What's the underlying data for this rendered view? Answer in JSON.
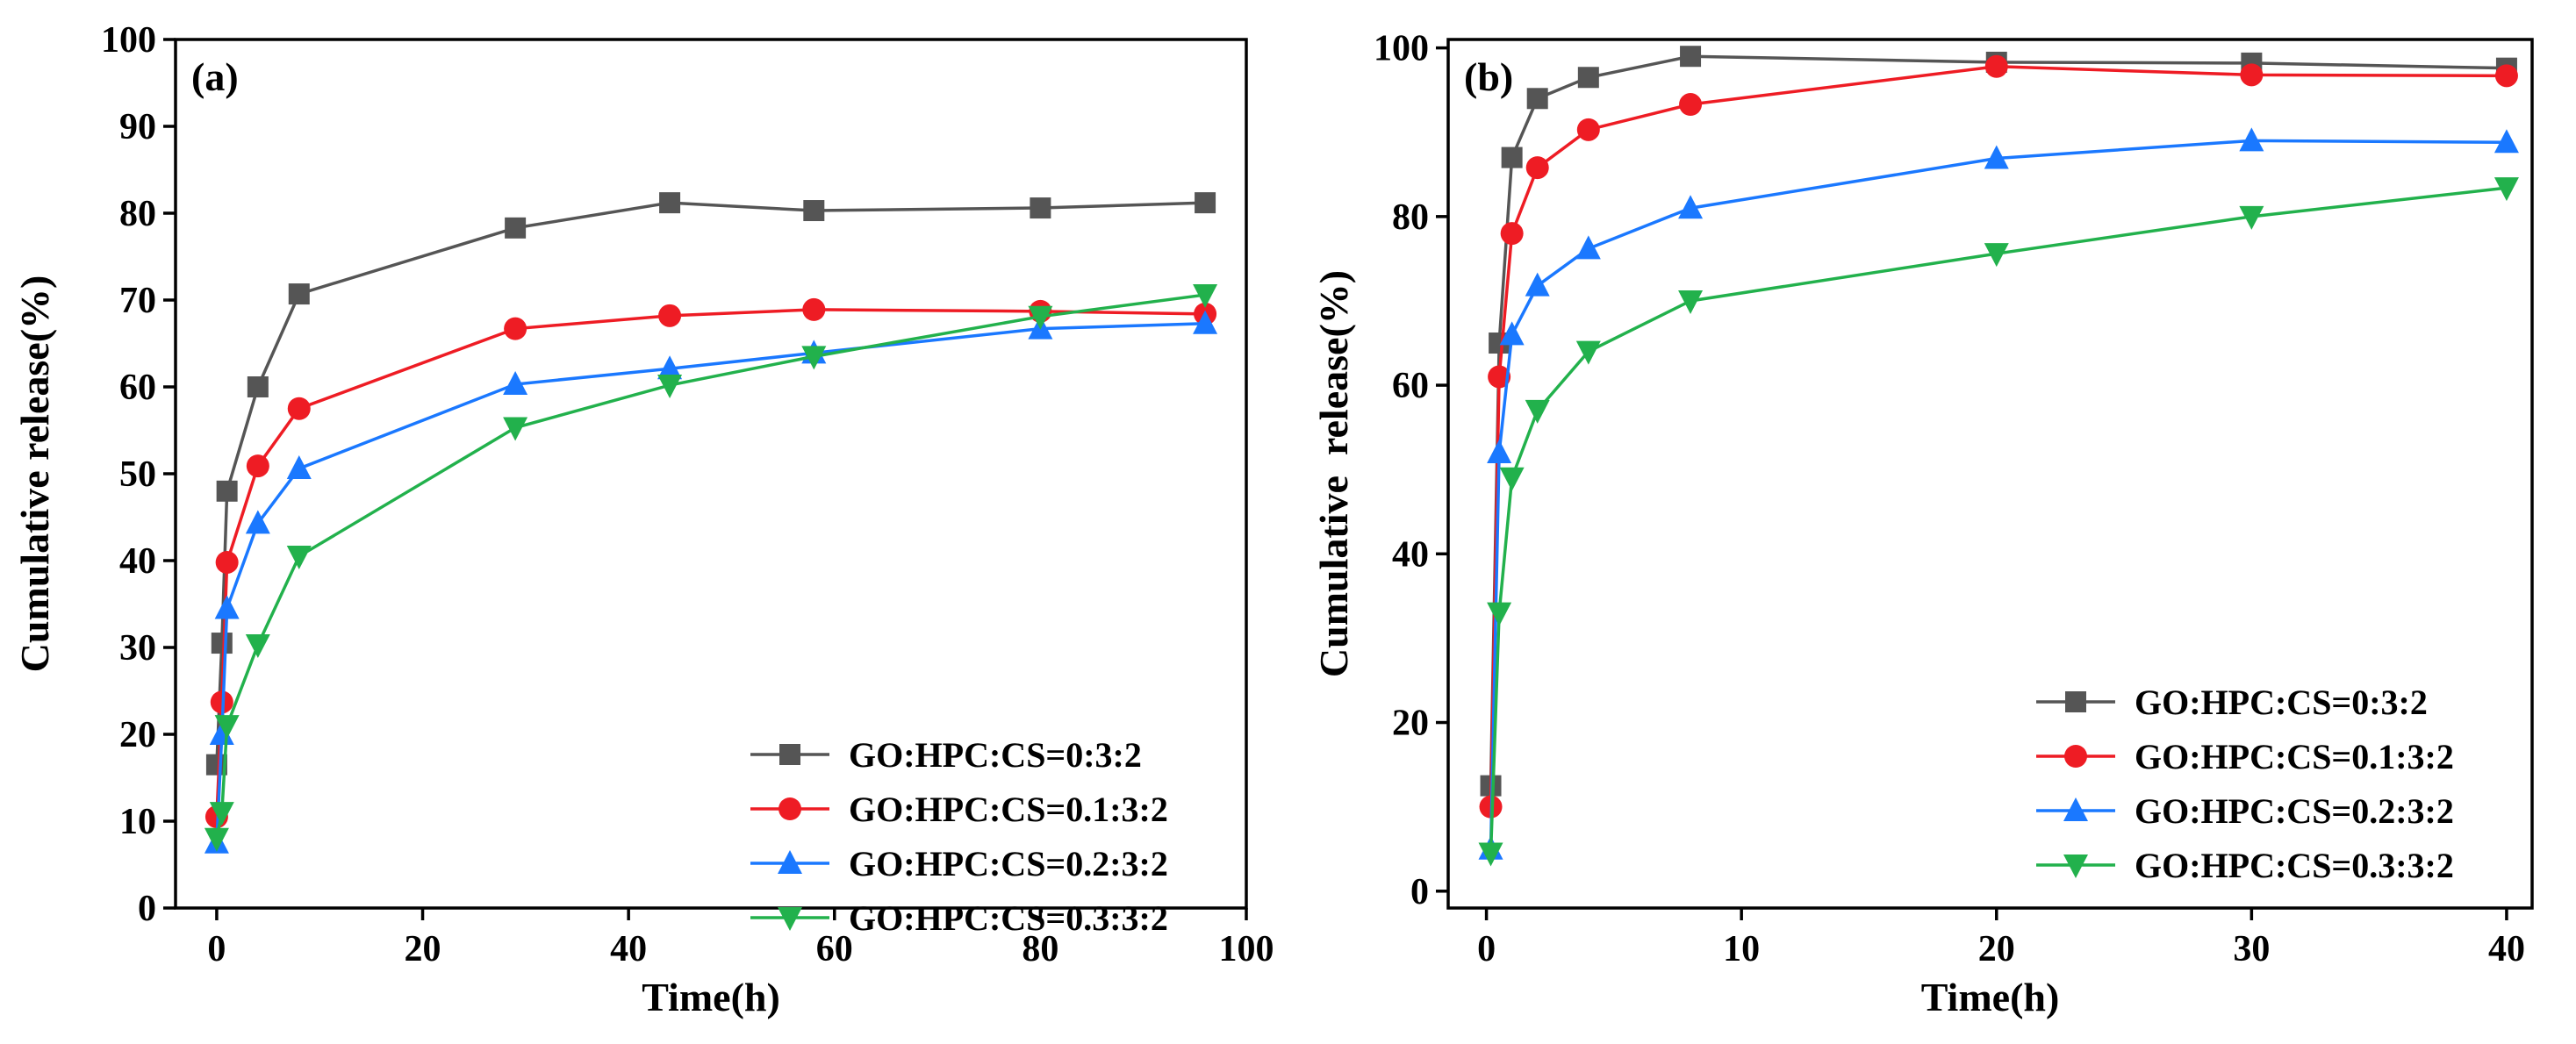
{
  "chart_data": [
    {
      "type": "line",
      "panel_label": "(a)",
      "xlabel": "Time(h)",
      "ylabel": "Cumulative release(%)",
      "xlim": [
        -4,
        100
      ],
      "ylim": [
        0,
        100
      ],
      "xticks": [
        0,
        20,
        40,
        60,
        80,
        100
      ],
      "yticks": [
        0,
        10,
        20,
        30,
        40,
        50,
        60,
        70,
        80,
        90,
        100
      ],
      "legend_position": "bottom-right",
      "series": [
        {
          "name": "GO:HPC:CS=0:3:2",
          "color": "#555555",
          "marker": "square",
          "x": [
            0,
            0.5,
            1,
            4,
            8,
            29,
            44,
            58,
            80,
            96
          ],
          "y": [
            16.5,
            30.5,
            48,
            60,
            70.7,
            78.3,
            81.2,
            80.3,
            80.6,
            81.2
          ]
        },
        {
          "name": "GO:HPC:CS=0.1:3:2",
          "color": "#ee1c24",
          "marker": "circle",
          "x": [
            0,
            0.5,
            1,
            4,
            8,
            29,
            44,
            58,
            80,
            96
          ],
          "y": [
            10.5,
            23.7,
            39.8,
            50.9,
            57.5,
            66.7,
            68.2,
            68.9,
            68.7,
            68.4
          ]
        },
        {
          "name": "GO:HPC:CS=0.2:3:2",
          "color": "#1a78ff",
          "marker": "triangle-up",
          "x": [
            0,
            0.5,
            1,
            4,
            8,
            29,
            44,
            58,
            80,
            96
          ],
          "y": [
            7.5,
            20,
            34.5,
            44.3,
            50.6,
            60.3,
            62.1,
            63.9,
            66.7,
            67.3
          ]
        },
        {
          "name": "GO:HPC:CS=0.3:3:2",
          "color": "#22b14c",
          "marker": "triangle-down",
          "x": [
            0,
            0.5,
            1,
            4,
            8,
            29,
            44,
            58,
            80,
            96
          ],
          "y": [
            8,
            11,
            21,
            30.3,
            40.5,
            55.3,
            60.2,
            63.5,
            68.1,
            70.6
          ]
        }
      ]
    },
    {
      "type": "line",
      "panel_label": "(b)",
      "xlabel": "Time(h)",
      "ylabel": "Cumulative  release(%)",
      "xlim": [
        -1.5,
        41
      ],
      "ylim": [
        -2,
        101
      ],
      "xticks": [
        0,
        10,
        20,
        30,
        40
      ],
      "yticks": [
        0,
        20,
        40,
        60,
        80,
        100
      ],
      "legend_position": "bottom-right",
      "series": [
        {
          "name": "GO:HPC:CS=0:3:2",
          "color": "#555555",
          "marker": "square",
          "x": [
            0.17,
            0.5,
            1,
            2,
            4,
            8,
            20,
            30,
            40
          ],
          "y": [
            12.5,
            65,
            87,
            94,
            96.5,
            99,
            98.3,
            98.2,
            97.6
          ]
        },
        {
          "name": "GO:HPC:CS=0.1:3:2",
          "color": "#ee1c24",
          "marker": "circle",
          "x": [
            0.17,
            0.5,
            1,
            2,
            4,
            8,
            20,
            30,
            40
          ],
          "y": [
            10,
            61,
            78,
            85.8,
            90.3,
            93.3,
            97.8,
            96.8,
            96.7
          ]
        },
        {
          "name": "GO:HPC:CS=0.2:3:2",
          "color": "#1a78ff",
          "marker": "triangle-up",
          "x": [
            0.17,
            0.5,
            1,
            2,
            4,
            8,
            20,
            30,
            40
          ],
          "y": [
            5,
            52,
            66,
            71.8,
            76.2,
            81,
            86.9,
            89,
            88.8
          ]
        },
        {
          "name": "GO:HPC:CS=0.3:3:2",
          "color": "#22b14c",
          "marker": "triangle-down",
          "x": [
            0.17,
            0.5,
            1,
            2,
            4,
            8,
            20,
            30,
            40
          ],
          "y": [
            4.5,
            33,
            49,
            57,
            64,
            70,
            75.6,
            80,
            83.4
          ]
        }
      ]
    }
  ]
}
